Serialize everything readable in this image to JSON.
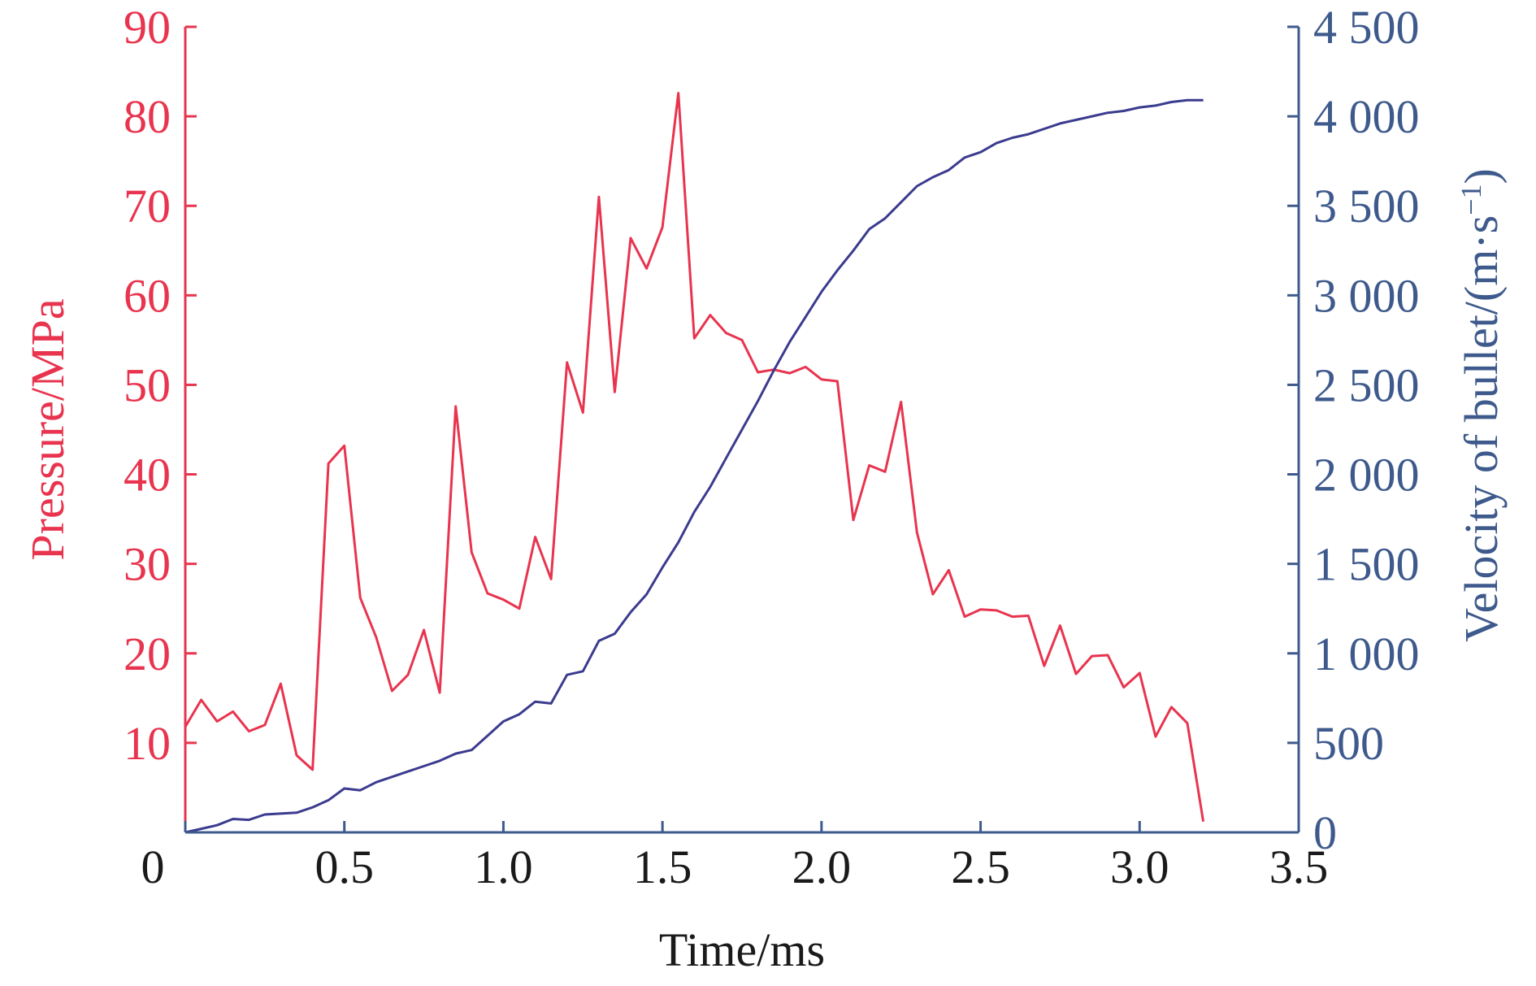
{
  "chart_data": {
    "type": "line",
    "xlabel": "Time/ms",
    "ylabel_left": "Pressure/MPa",
    "ylabel_right": "Velocity of bullet/(m·s",
    "ylabel_right_superscript": "−1",
    "ylabel_right_close": ")",
    "xlim": [
      0,
      3.5
    ],
    "ylim_left": [
      0,
      90
    ],
    "ylim_right": [
      0,
      4500
    ],
    "x_ticks": [
      {
        "value": 0,
        "label": "0"
      },
      {
        "value": 0.5,
        "label": "0.5"
      },
      {
        "value": 1.0,
        "label": "1.0"
      },
      {
        "value": 1.5,
        "label": "1.5"
      },
      {
        "value": 2.0,
        "label": "2.0"
      },
      {
        "value": 2.5,
        "label": "2.5"
      },
      {
        "value": 3.0,
        "label": "3.0"
      },
      {
        "value": 3.5,
        "label": "3.5"
      }
    ],
    "y_left_ticks": [
      {
        "value": 10,
        "label": "10"
      },
      {
        "value": 20,
        "label": "20"
      },
      {
        "value": 30,
        "label": "30"
      },
      {
        "value": 40,
        "label": "40"
      },
      {
        "value": 50,
        "label": "50"
      },
      {
        "value": 60,
        "label": "60"
      },
      {
        "value": 70,
        "label": "70"
      },
      {
        "value": 80,
        "label": "80"
      },
      {
        "value": 90,
        "label": "90"
      }
    ],
    "y_right_ticks": [
      {
        "value": 0,
        "label": "0"
      },
      {
        "value": 500,
        "label": "500"
      },
      {
        "value": 1000,
        "label": "1 000"
      },
      {
        "value": 1500,
        "label": "1 500"
      },
      {
        "value": 2000,
        "label": "2 000"
      },
      {
        "value": 2500,
        "label": "2 500"
      },
      {
        "value": 3000,
        "label": "3 000"
      },
      {
        "value": 3500,
        "label": "3 500"
      },
      {
        "value": 4000,
        "label": "4 000"
      },
      {
        "value": 4500,
        "label": "4 500"
      }
    ],
    "grid": false,
    "colors": {
      "pressure": "#e8344e",
      "velocity": "#3b3b8f",
      "left_axis": "#e8344e",
      "right_axis": "#3e5a8c",
      "bottom_axis": "#3e5a8c"
    },
    "series": [
      {
        "axis": "left",
        "x": [
          0,
          0.05,
          0.1,
          0.15,
          0.2,
          0.25,
          0.3,
          0.35,
          0.4,
          0.45,
          0.5,
          0.55,
          0.6,
          0.65,
          0.7,
          0.75,
          0.8,
          0.85,
          0.9,
          0.95,
          1.0,
          1.05,
          1.1,
          1.15,
          1.2,
          1.25,
          1.3,
          1.35,
          1.4,
          1.45,
          1.5,
          1.55,
          1.6,
          1.65,
          1.7,
          1.75,
          1.8,
          1.85,
          1.9,
          1.95,
          2.0,
          2.05,
          2.1,
          2.15,
          2.2,
          2.25,
          2.3,
          2.35,
          2.4,
          2.45,
          2.5,
          2.55,
          2.6,
          2.65,
          2.7,
          2.75,
          2.8,
          2.85,
          2.9,
          2.95,
          3.0,
          3.05,
          3.1,
          3.15,
          3.2
        ],
        "values": [
          11.8,
          14.8,
          12.4,
          13.5,
          11.3,
          12.0,
          16.6,
          8.6,
          7.0,
          41.2,
          43.2,
          26.2,
          21.8,
          15.8,
          17.6,
          22.6,
          15.6,
          47.6,
          31.3,
          26.7,
          26.0,
          25.0,
          33.0,
          28.3,
          52.5,
          46.9,
          71.0,
          49.2,
          66.4,
          63.0,
          67.6,
          82.6,
          55.2,
          57.8,
          55.8,
          55.0,
          51.4,
          51.7,
          51.3,
          52.0,
          50.6,
          50.4,
          34.9,
          41.0,
          40.3,
          48.1,
          33.5,
          26.6,
          29.3,
          24.1,
          24.9,
          24.8,
          24.1,
          24.2,
          18.6,
          23.1,
          17.7,
          19.7,
          19.8,
          16.2,
          17.8,
          10.7,
          14.0,
          12.2,
          1.2
        ]
      },
      {
        "axis": "right",
        "x": [
          0,
          0.05,
          0.1,
          0.15,
          0.2,
          0.25,
          0.3,
          0.35,
          0.4,
          0.45,
          0.5,
          0.55,
          0.6,
          0.65,
          0.7,
          0.75,
          0.8,
          0.85,
          0.9,
          0.95,
          1.0,
          1.05,
          1.1,
          1.15,
          1.2,
          1.25,
          1.3,
          1.35,
          1.4,
          1.45,
          1.5,
          1.55,
          1.6,
          1.65,
          1.7,
          1.75,
          1.8,
          1.85,
          1.9,
          1.95,
          2.0,
          2.05,
          2.1,
          2.15,
          2.2,
          2.25,
          2.3,
          2.35,
          2.4,
          2.45,
          2.5,
          2.55,
          2.6,
          2.65,
          2.7,
          2.75,
          2.8,
          2.85,
          2.9,
          2.95,
          3.0,
          3.05,
          3.1,
          3.15,
          3.2
        ],
        "values": [
          0,
          20,
          40,
          75,
          70,
          100,
          105,
          110,
          140,
          180,
          245,
          235,
          280,
          310,
          340,
          370,
          400,
          440,
          460,
          540,
          620,
          660,
          730,
          720,
          880,
          900,
          1070,
          1110,
          1230,
          1330,
          1480,
          1620,
          1790,
          1930,
          2090,
          2250,
          2410,
          2580,
          2740,
          2880,
          3020,
          3140,
          3250,
          3370,
          3430,
          3520,
          3610,
          3660,
          3700,
          3770,
          3800,
          3850,
          3880,
          3900,
          3930,
          3960,
          3980,
          4000,
          4020,
          4030,
          4050,
          4060,
          4080,
          4090,
          4090
        ]
      }
    ]
  }
}
